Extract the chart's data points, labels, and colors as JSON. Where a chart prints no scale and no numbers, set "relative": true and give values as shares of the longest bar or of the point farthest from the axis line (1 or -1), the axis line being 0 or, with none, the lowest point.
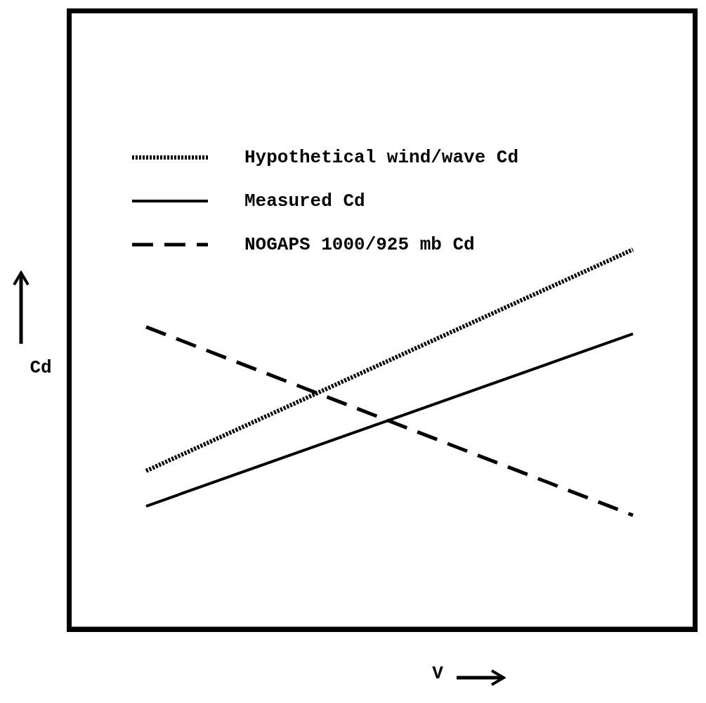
{
  "chart_data": {
    "type": "line",
    "xlabel": "V",
    "ylabel": "Cd",
    "relative": true,
    "categories": [
      null,
      null
    ],
    "legend": "top",
    "series": [
      {
        "name": "Hypothetical wind/wave Cd",
        "color": "#000000",
        "line_style": "dotted",
        "values": [
          0.417,
          1
        ]
      },
      {
        "name": "Measured Cd",
        "color": "#000000",
        "line_style": "solid",
        "values": [
          0.324,
          0.778
        ]
      },
      {
        "name": "NOGAPS 1000/925 mb Cd",
        "color": "#000000",
        "line_style": "dashed",
        "values": [
          0.796,
          0.3
        ]
      }
    ]
  }
}
